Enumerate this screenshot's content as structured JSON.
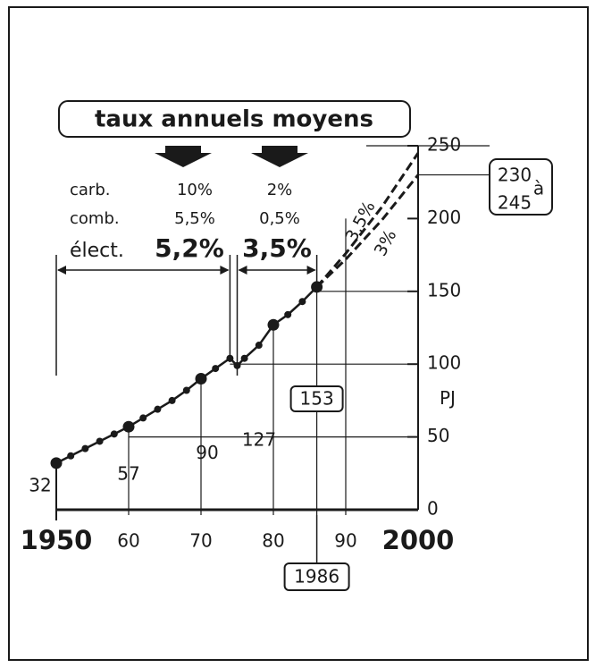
{
  "chart_data": {
    "type": "line",
    "title": "taux annuels moyens",
    "ylabel": "PJ",
    "xlim": [
      1950,
      2000
    ],
    "ylim": [
      0,
      250
    ],
    "xticks": [
      1950,
      {
        "value": 1960,
        "label": "60"
      },
      {
        "value": 1970,
        "label": "70"
      },
      {
        "value": 1980,
        "label": "80"
      },
      {
        "value": 1990,
        "label": "90"
      },
      2000
    ],
    "yticks": [
      0,
      50,
      100,
      150,
      200,
      250
    ],
    "series": [
      {
        "color": "#1a1a1a",
        "x": [
          1950,
          1952,
          1954,
          1956,
          1958,
          1960,
          1962,
          1964,
          1966,
          1968,
          1970,
          1972,
          1974,
          1975,
          1976,
          1978,
          1980,
          1982,
          1984,
          1986
        ],
        "values": [
          32,
          37,
          42,
          47,
          52,
          57,
          63,
          69,
          75,
          82,
          90,
          97,
          104,
          99,
          104,
          113,
          127,
          134,
          143,
          153
        ]
      },
      {
        "name": "3,5%",
        "color": "#1a1a1a",
        "dashed": true,
        "x": [
          1986,
          1990,
          1995,
          2000
        ],
        "values": [
          153,
          176,
          208,
          245
        ]
      },
      {
        "name": "3%",
        "color": "#1a1a1a",
        "dashed": true,
        "x": [
          1986,
          1990,
          1995,
          2000
        ],
        "values": [
          153,
          172,
          199,
          230
        ]
      }
    ],
    "labeled_points": [
      1950,
      1960,
      1970,
      1980,
      1986
    ],
    "range_word": "à",
    "periods": [
      [
        1950,
        1974
      ],
      [
        1975,
        1986
      ]
    ],
    "rates": [
      {
        "label": "carb.",
        "values": [
          "10%",
          "2%"
        ]
      },
      {
        "label": "comb.",
        "values": [
          "5,5%",
          "0,5%"
        ]
      },
      {
        "label": "élect.",
        "values": [
          "5,2%",
          "3,5%"
        ]
      }
    ]
  }
}
